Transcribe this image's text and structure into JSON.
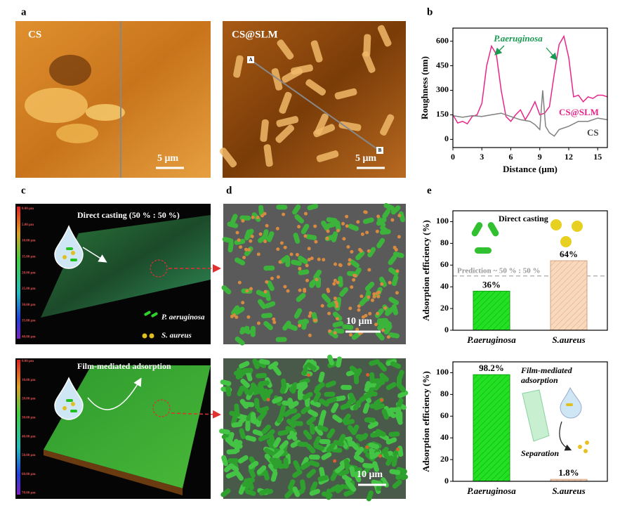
{
  "panel_labels": [
    "a",
    "b",
    "c",
    "d",
    "e"
  ],
  "afm": {
    "left_label": "CS",
    "right_label": "CS@SLM",
    "scale_bar": "5 μm",
    "marker_a": "A",
    "marker_b": "B"
  },
  "clsm": {
    "top_title": "Direct casting (50 % : 50 %)",
    "bottom_title": "Film-mediated  adsorption",
    "legend": [
      "P. aeruginosa",
      "S. aureus"
    ],
    "top_scale": [
      "0.00 μm",
      "5.00 μm",
      "10.00 μm",
      "15.00 μm",
      "20.00 μm",
      "25.00 μm",
      "30.00 μm",
      "35.00 μm",
      "40.00 μm"
    ],
    "bottom_scale": [
      "0.00 μm",
      "10.00 μm",
      "20.00 μm",
      "30.00 μm",
      "40.00 μm",
      "50.00 μm",
      "60.00 μm",
      "70.00 μm"
    ]
  },
  "sem": {
    "scale_bar": "10 μm"
  },
  "chart_data": [
    {
      "type": "line",
      "xlabel": "Distance (μm)",
      "ylabel": "Roughness (nm)",
      "annotation": "P.aeruginosa",
      "xlim": [
        0,
        16
      ],
      "ylim": [
        -50,
        680
      ],
      "xticks": [
        0,
        3,
        6,
        9,
        12,
        15
      ],
      "yticks": [
        0,
        150,
        300,
        450,
        600
      ],
      "series": [
        {
          "name": "CS@SLM",
          "color": "#e8268a",
          "x": [
            0,
            0.5,
            1,
            1.5,
            2,
            2.5,
            3,
            3.5,
            4,
            4.5,
            5,
            5.5,
            6,
            6.5,
            7,
            7.5,
            8,
            8.5,
            9,
            9.5,
            10,
            10.5,
            11,
            11.5,
            12,
            12.5,
            13,
            13.5,
            14,
            14.5,
            15,
            15.5,
            16
          ],
          "values": [
            150,
            100,
            110,
            95,
            140,
            150,
            220,
            450,
            570,
            520,
            300,
            140,
            110,
            150,
            180,
            120,
            170,
            230,
            150,
            160,
            200,
            400,
            580,
            630,
            500,
            260,
            270,
            230,
            260,
            250,
            270,
            270,
            260
          ]
        },
        {
          "name": "CS",
          "color": "#808080",
          "x": [
            0,
            1,
            2,
            3,
            4,
            5,
            6,
            7,
            8,
            8.5,
            9,
            9.3,
            9.6,
            10,
            10.5,
            11,
            12,
            13,
            14,
            15,
            16
          ],
          "values": [
            145,
            135,
            145,
            140,
            150,
            160,
            140,
            120,
            110,
            90,
            60,
            300,
            80,
            40,
            20,
            60,
            80,
            110,
            110,
            130,
            120
          ]
        }
      ]
    },
    {
      "type": "bar",
      "ylabel": "Adsorption efficiency (%)",
      "annotation": "Direct casting",
      "reference": {
        "value": 50,
        "label": "Prediction ~ 50 % : 50 %"
      },
      "categories": [
        "P.aeruginosa",
        "S.aureus"
      ],
      "values": [
        36,
        64
      ],
      "value_labels": [
        "36%",
        "64%"
      ],
      "colors": [
        "#22e022",
        "#f9d9bd"
      ],
      "ylim": [
        0,
        110
      ],
      "yticks": [
        0,
        20,
        40,
        60,
        80,
        100
      ]
    },
    {
      "type": "bar",
      "ylabel": "Adsorption efficiency (%)",
      "annotation": [
        "Film-mediated",
        "adsorption"
      ],
      "note": "Separation",
      "categories": [
        "P.aeruginosa",
        "S.aureus"
      ],
      "values": [
        98.2,
        1.8
      ],
      "value_labels": [
        "98.2%",
        "1.8%"
      ],
      "colors": [
        "#22e022",
        "#f9d9bd"
      ],
      "ylim": [
        0,
        110
      ],
      "yticks": [
        0,
        20,
        40,
        60,
        80,
        100
      ]
    }
  ]
}
